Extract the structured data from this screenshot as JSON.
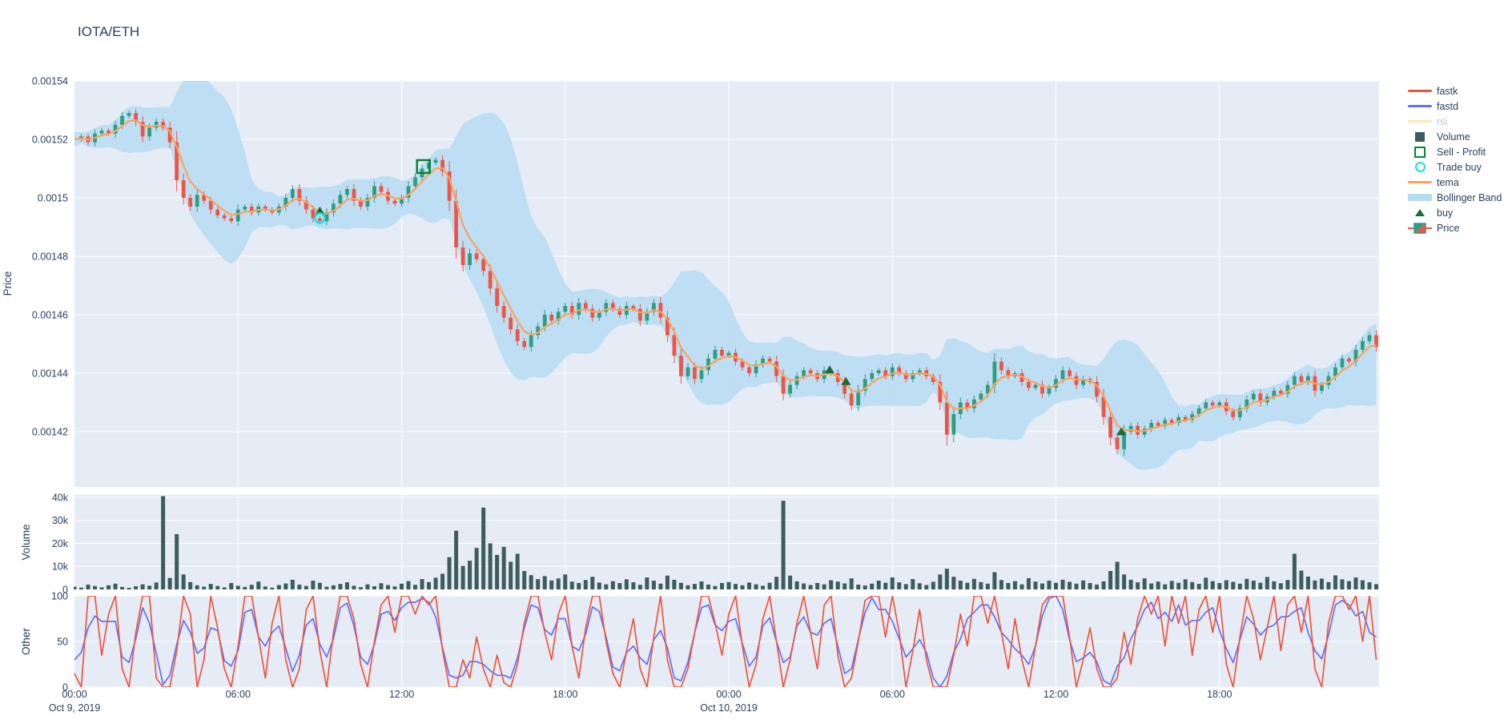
{
  "title": "IOTA/ETH",
  "chart_data": {
    "type": "candlestick-multi-panel",
    "x_start_label": "Oct 9, 2019 00:00",
    "step_minutes": 15,
    "x_ticks": [
      "00:00",
      "06:00",
      "12:00",
      "18:00",
      "00:00",
      "06:00",
      "12:00",
      "18:00"
    ],
    "x_dates": [
      {
        "label": "Oct 9, 2019",
        "tick_index": 0
      },
      {
        "label": "Oct 10, 2019",
        "tick_index": 4
      }
    ],
    "panels": {
      "price": {
        "axis_title": "Price",
        "ticks": [
          "0.00154",
          "0.00152",
          "0.0015",
          "0.00148",
          "0.00146",
          "0.00144",
          "0.00142"
        ],
        "range_e5": [
          140.1,
          154.0
        ]
      },
      "volume": {
        "axis_title": "Volume",
        "ticks": [
          "40k",
          "30k",
          "20k",
          "10k",
          "0"
        ],
        "range_k": [
          0,
          41
        ]
      },
      "other": {
        "axis_title": "Other",
        "ticks": [
          "100",
          "50",
          "0"
        ],
        "range": [
          0,
          100
        ]
      }
    },
    "series": {
      "close_e5": [
        152.0,
        152.1,
        151.9,
        152.2,
        152.3,
        152.2,
        152.5,
        152.8,
        152.9,
        152.6,
        152.1,
        152.4,
        152.6,
        152.4,
        151.9,
        150.6,
        150.0,
        149.7,
        150.1,
        149.9,
        149.6,
        149.4,
        149.3,
        149.2,
        149.6,
        149.7,
        149.5,
        149.7,
        149.6,
        149.5,
        149.7,
        150.0,
        150.3,
        149.9,
        149.6,
        149.3,
        149.2,
        149.5,
        149.8,
        150.1,
        150.3,
        149.9,
        149.7,
        150.0,
        150.4,
        150.2,
        149.9,
        149.8,
        150.0,
        150.4,
        150.7,
        151.0,
        151.2,
        151.3,
        150.9,
        149.9,
        148.3,
        147.7,
        148.1,
        147.9,
        147.5,
        146.9,
        146.3,
        145.9,
        145.5,
        145.1,
        144.9,
        145.3,
        145.6,
        146.0,
        145.8,
        146.1,
        146.3,
        146.0,
        146.4,
        146.2,
        145.9,
        146.1,
        146.4,
        146.2,
        146.0,
        146.3,
        146.2,
        145.8,
        146.1,
        146.4,
        145.9,
        145.3,
        144.6,
        143.9,
        144.2,
        143.8,
        144.1,
        144.5,
        144.8,
        144.6,
        144.7,
        144.4,
        144.2,
        144.0,
        144.3,
        144.5,
        144.4,
        143.9,
        143.3,
        143.6,
        143.9,
        144.1,
        144.0,
        143.8,
        144.1,
        144.0,
        143.7,
        143.3,
        142.9,
        143.4,
        143.8,
        144.0,
        144.1,
        143.9,
        144.2,
        144.0,
        143.8,
        144.0,
        144.1,
        143.9,
        143.7,
        143.0,
        141.9,
        142.6,
        143.0,
        142.8,
        143.1,
        143.3,
        143.6,
        144.4,
        144.1,
        143.9,
        144.0,
        143.7,
        143.5,
        143.6,
        143.3,
        143.5,
        143.8,
        144.1,
        143.9,
        143.6,
        143.8,
        143.7,
        143.2,
        142.5,
        141.8,
        141.4,
        142.0,
        142.2,
        141.9,
        142.1,
        142.3,
        142.2,
        142.4,
        142.3,
        142.5,
        142.4,
        142.6,
        142.8,
        143.0,
        142.9,
        143.0,
        142.7,
        142.5,
        142.8,
        143.1,
        143.3,
        143.0,
        143.2,
        143.4,
        143.3,
        143.6,
        143.9,
        143.7,
        143.9,
        143.4,
        143.6,
        143.9,
        144.2,
        144.5,
        144.4,
        144.8,
        145.1,
        145.3,
        144.9
      ],
      "volume_k": [
        1.2,
        0.8,
        2.1,
        1.5,
        0.9,
        1.8,
        2.5,
        1.1,
        0.7,
        1.4,
        2.2,
        1.6,
        3.0,
        40.5,
        5.0,
        24.0,
        6.5,
        3.2,
        1.8,
        1.2,
        2.4,
        1.5,
        0.9,
        2.8,
        1.6,
        1.1,
        2.0,
        3.4,
        1.3,
        0.8,
        1.9,
        2.6,
        4.2,
        2.1,
        1.5,
        3.8,
        2.9,
        1.2,
        1.8,
        2.4,
        3.1,
        1.6,
        1.0,
        2.2,
        1.4,
        2.7,
        1.9,
        1.3,
        2.5,
        3.6,
        2.0,
        4.5,
        3.2,
        5.1,
        6.8,
        14.0,
        25.5,
        10.2,
        12.5,
        18.0,
        35.5,
        20.0,
        15.0,
        18.5,
        12.0,
        15.5,
        8.0,
        6.2,
        4.5,
        5.8,
        3.9,
        4.8,
        6.5,
        3.4,
        2.8,
        4.1,
        5.5,
        3.0,
        2.2,
        3.6,
        2.8,
        4.4,
        3.1,
        2.0,
        5.2,
        3.8,
        2.5,
        6.0,
        4.2,
        2.9,
        1.8,
        2.4,
        3.5,
        2.1,
        1.5,
        2.8,
        3.2,
        2.4,
        1.8,
        3.0,
        2.2,
        1.6,
        2.9,
        5.5,
        38.5,
        6.0,
        3.5,
        2.6,
        1.9,
        2.8,
        2.2,
        4.0,
        3.4,
        2.6,
        4.8,
        2.1,
        1.7,
        2.5,
        3.8,
        2.9,
        5.2,
        3.1,
        2.3,
        4.5,
        2.7,
        1.9,
        3.3,
        6.5,
        9.0,
        5.5,
        3.8,
        2.9,
        4.6,
        3.2,
        2.5,
        7.5,
        4.1,
        2.8,
        3.6,
        2.2,
        4.9,
        3.4,
        2.6,
        3.8,
        2.9,
        4.2,
        3.3,
        2.5,
        3.9,
        2.8,
        2.1,
        3.5,
        8.0,
        12.0,
        6.5,
        4.2,
        3.1,
        4.8,
        2.6,
        3.4,
        2.2,
        3.7,
        2.9,
        4.4,
        3.2,
        2.4,
        5.1,
        3.6,
        2.8,
        4.0,
        3.3,
        2.5,
        4.6,
        3.8,
        2.9,
        5.4,
        3.5,
        2.7,
        4.1,
        15.5,
        8.2,
        5.6,
        3.9,
        4.7,
        3.2,
        6.1,
        4.4,
        3.6,
        5.2,
        4.0,
        3.1,
        2.3
      ],
      "fastk": [
        15,
        0,
        100,
        100,
        35,
        80,
        100,
        20,
        0,
        60,
        100,
        100,
        10,
        0,
        0,
        40,
        100,
        80,
        0,
        30,
        100,
        65,
        20,
        0,
        45,
        100,
        100,
        55,
        10,
        70,
        100,
        30,
        0,
        20,
        85,
        100,
        40,
        0,
        60,
        100,
        100,
        75,
        25,
        0,
        50,
        90,
        100,
        60,
        100,
        100,
        80,
        100,
        90,
        100,
        40,
        0,
        0,
        30,
        10,
        55,
        20,
        0,
        35,
        5,
        0,
        25,
        70,
        100,
        100,
        60,
        30,
        80,
        100,
        45,
        10,
        65,
        100,
        100,
        50,
        15,
        0,
        40,
        75,
        20,
        0,
        55,
        100,
        30,
        0,
        0,
        20,
        60,
        100,
        100,
        70,
        35,
        80,
        100,
        45,
        0,
        25,
        75,
        100,
        50,
        0,
        30,
        70,
        100,
        60,
        20,
        90,
        100,
        35,
        0,
        10,
        50,
        95,
        100,
        100,
        55,
        100,
        60,
        0,
        40,
        85,
        30,
        0,
        0,
        0,
        35,
        80,
        45,
        100,
        100,
        70,
        100,
        60,
        20,
        75,
        30,
        0,
        45,
        90,
        100,
        100,
        100,
        55,
        0,
        30,
        65,
        20,
        0,
        0,
        10,
        60,
        25,
        75,
        100,
        80,
        100,
        45,
        100,
        70,
        100,
        35,
        85,
        100,
        60,
        100,
        25,
        0,
        55,
        100,
        75,
        30,
        65,
        100,
        40,
        90,
        100,
        60,
        100,
        20,
        0,
        70,
        100,
        100,
        85,
        100,
        50,
        100,
        30
      ],
      "fastd": [
        30,
        38,
        65,
        78,
        72,
        72,
        72,
        33,
        27,
        53,
        87,
        70,
        37,
        3,
        13,
        47,
        73,
        60,
        37,
        43,
        65,
        62,
        29,
        23,
        40,
        82,
        85,
        55,
        45,
        60,
        67,
        43,
        17,
        35,
        68,
        75,
        47,
        33,
        53,
        87,
        92,
        67,
        33,
        25,
        47,
        80,
        83,
        73,
        87,
        93,
        93,
        97,
        93,
        77,
        43,
        13,
        10,
        13,
        28,
        28,
        25,
        18,
        13,
        13,
        10,
        32,
        65,
        90,
        87,
        63,
        57,
        75,
        75,
        45,
        40,
        58,
        88,
        83,
        55,
        22,
        18,
        38,
        45,
        32,
        25,
        52,
        62,
        43,
        10,
        7,
        27,
        60,
        87,
        90,
        68,
        62,
        72,
        75,
        48,
        23,
        33,
        67,
        76,
        50,
        27,
        33,
        67,
        77,
        60,
        57,
        70,
        75,
        45,
        15,
        20,
        52,
        82,
        98,
        85,
        85,
        72,
        53,
        33,
        42,
        52,
        38,
        10,
        0,
        12,
        38,
        53,
        75,
        82,
        90,
        90,
        77,
        60,
        52,
        42,
        35,
        25,
        45,
        78,
        97,
        100,
        85,
        52,
        28,
        32,
        38,
        28,
        7,
        3,
        23,
        32,
        53,
        67,
        85,
        93,
        75,
        82,
        72,
        90,
        68,
        73,
        73,
        82,
        87,
        62,
        42,
        27,
        52,
        77,
        69,
        57,
        65,
        68,
        77,
        77,
        83,
        87,
        60,
        40,
        31,
        57,
        90,
        95,
        90,
        78,
        83,
        60,
        55
      ]
    },
    "markers": {
      "buys": [
        {
          "t": 9.0,
          "p": 149.55
        },
        {
          "t": 27.7,
          "p": 144.12
        },
        {
          "t": 28.3,
          "p": 143.72
        },
        {
          "t": 38.4,
          "p": 142.0
        }
      ],
      "trade_buys": [
        {
          "t": 9.0,
          "p": 149.3
        }
      ],
      "sells": [
        {
          "t": 12.8,
          "p": 151.07
        }
      ]
    },
    "colors": {
      "plot_bg": "#E5ECF6",
      "grid": "#ffffff",
      "text": "#2a3f5f",
      "candle_up": "#2E9E83",
      "candle_down": "#EF5546",
      "volume_bar": "#3D5C5E",
      "bollinger": "#B6DCF2",
      "tema": "#FFA15A",
      "fastk": "#EF553B",
      "fastd": "#636EFA",
      "rsi": "#FECB52",
      "buy": "#1C6B3A",
      "sell": "#0B8235",
      "trade_buy": "#15DFF0"
    }
  },
  "legend": {
    "items": [
      {
        "label": "fastk",
        "type": "line",
        "color": "#EF553B"
      },
      {
        "label": "fastd",
        "type": "line",
        "color": "#636EFA"
      },
      {
        "label": "rsi",
        "type": "line",
        "color": "#FECB52",
        "dimmed": true
      },
      {
        "label": "Volume",
        "type": "square",
        "color": "#3D5C5E"
      },
      {
        "label": "Sell - Profit",
        "type": "open-square",
        "color": "#0B8235"
      },
      {
        "label": "Trade buy",
        "type": "open-circle",
        "color": "#15DFF0"
      },
      {
        "label": "tema",
        "type": "line",
        "color": "#FFA15A"
      },
      {
        "label": "Bollinger Band",
        "type": "band",
        "color": "#B6DCF2"
      },
      {
        "label": "buy",
        "type": "triangle",
        "color": "#1C6B3A"
      },
      {
        "label": "Price",
        "type": "candle",
        "color": "#2E9E83",
        "color2": "#EF5546"
      }
    ]
  }
}
